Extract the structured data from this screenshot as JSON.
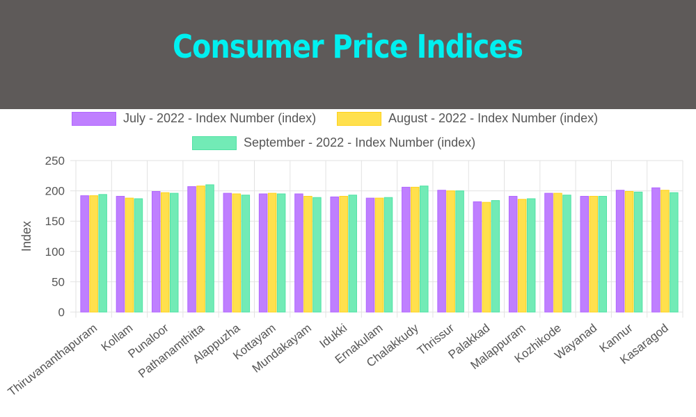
{
  "header": {
    "title": "Consumer Price Indices"
  },
  "colors": {
    "header_bg": "#5e5a59",
    "title": "#00f0f0",
    "series": [
      "#bf7fff",
      "#ffe04d",
      "#72ebb6"
    ],
    "series_border": [
      "#b066ff",
      "#ffd21a",
      "#4fe2a4"
    ]
  },
  "chart_data": {
    "type": "bar",
    "title": "",
    "xlabel": "",
    "ylabel": "Index",
    "ylim": [
      0,
      250
    ],
    "yticks": [
      0,
      50,
      100,
      150,
      200,
      250
    ],
    "grid": true,
    "legend_position": "top",
    "categories": [
      "Thiruvananthapuram",
      "Kollam",
      "Punaloor",
      "Pathanamthitta",
      "Alappuzha",
      "Kottayam",
      "Mundakayam",
      "Idukki",
      "Ernakulam",
      "Chalakkudy",
      "Thrissur",
      "Palakkad",
      "Malappuram",
      "Kozhikode",
      "Wayanad",
      "Kannur",
      "Kasaragod"
    ],
    "series": [
      {
        "name": "July - 2022 - Index Number (index)",
        "values": [
          192,
          191,
          199,
          207,
          196,
          195,
          195,
          190,
          188,
          206,
          201,
          182,
          191,
          196,
          191,
          201,
          205
        ]
      },
      {
        "name": "August - 2022 - Index Number (index)",
        "values": [
          192,
          188,
          197,
          208,
          195,
          196,
          191,
          191,
          188,
          206,
          200,
          181,
          186,
          196,
          191,
          199,
          201
        ]
      },
      {
        "name": "September - 2022 - Index Number (index)",
        "values": [
          194,
          187,
          196,
          210,
          193,
          195,
          189,
          193,
          189,
          208,
          200,
          184,
          187,
          193,
          191,
          198,
          197
        ]
      }
    ]
  }
}
